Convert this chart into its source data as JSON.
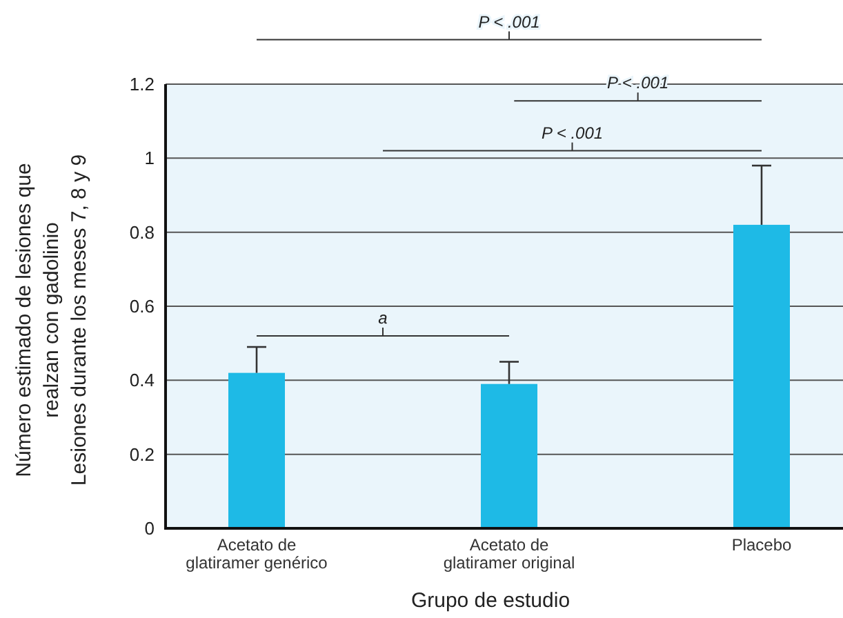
{
  "chart_data": {
    "type": "bar",
    "xlabel": "Grupo de estudio",
    "ylabel": "Número estimado de lesiones que\nrealzan con gadolinio\nLesiones durante los meses 7, 8 y 9",
    "categories": [
      "Acetato de\nglatiramer genérico",
      "Acetato de\nglatiramer original",
      "Placebo"
    ],
    "values": [
      0.42,
      0.39,
      0.82
    ],
    "errors": [
      [
        0.42,
        0.49
      ],
      [
        0.39,
        0.45
      ],
      [
        0.82,
        0.98
      ]
    ],
    "color": "#1ebae6",
    "ylim": [
      0,
      1.2
    ],
    "yticks": [
      0,
      0.2,
      0.4,
      0.6,
      0.8,
      1.0,
      1.2
    ],
    "grid": "y",
    "annotations": [
      "P < .001",
      "P < .001",
      "P < .001",
      "a"
    ]
  }
}
